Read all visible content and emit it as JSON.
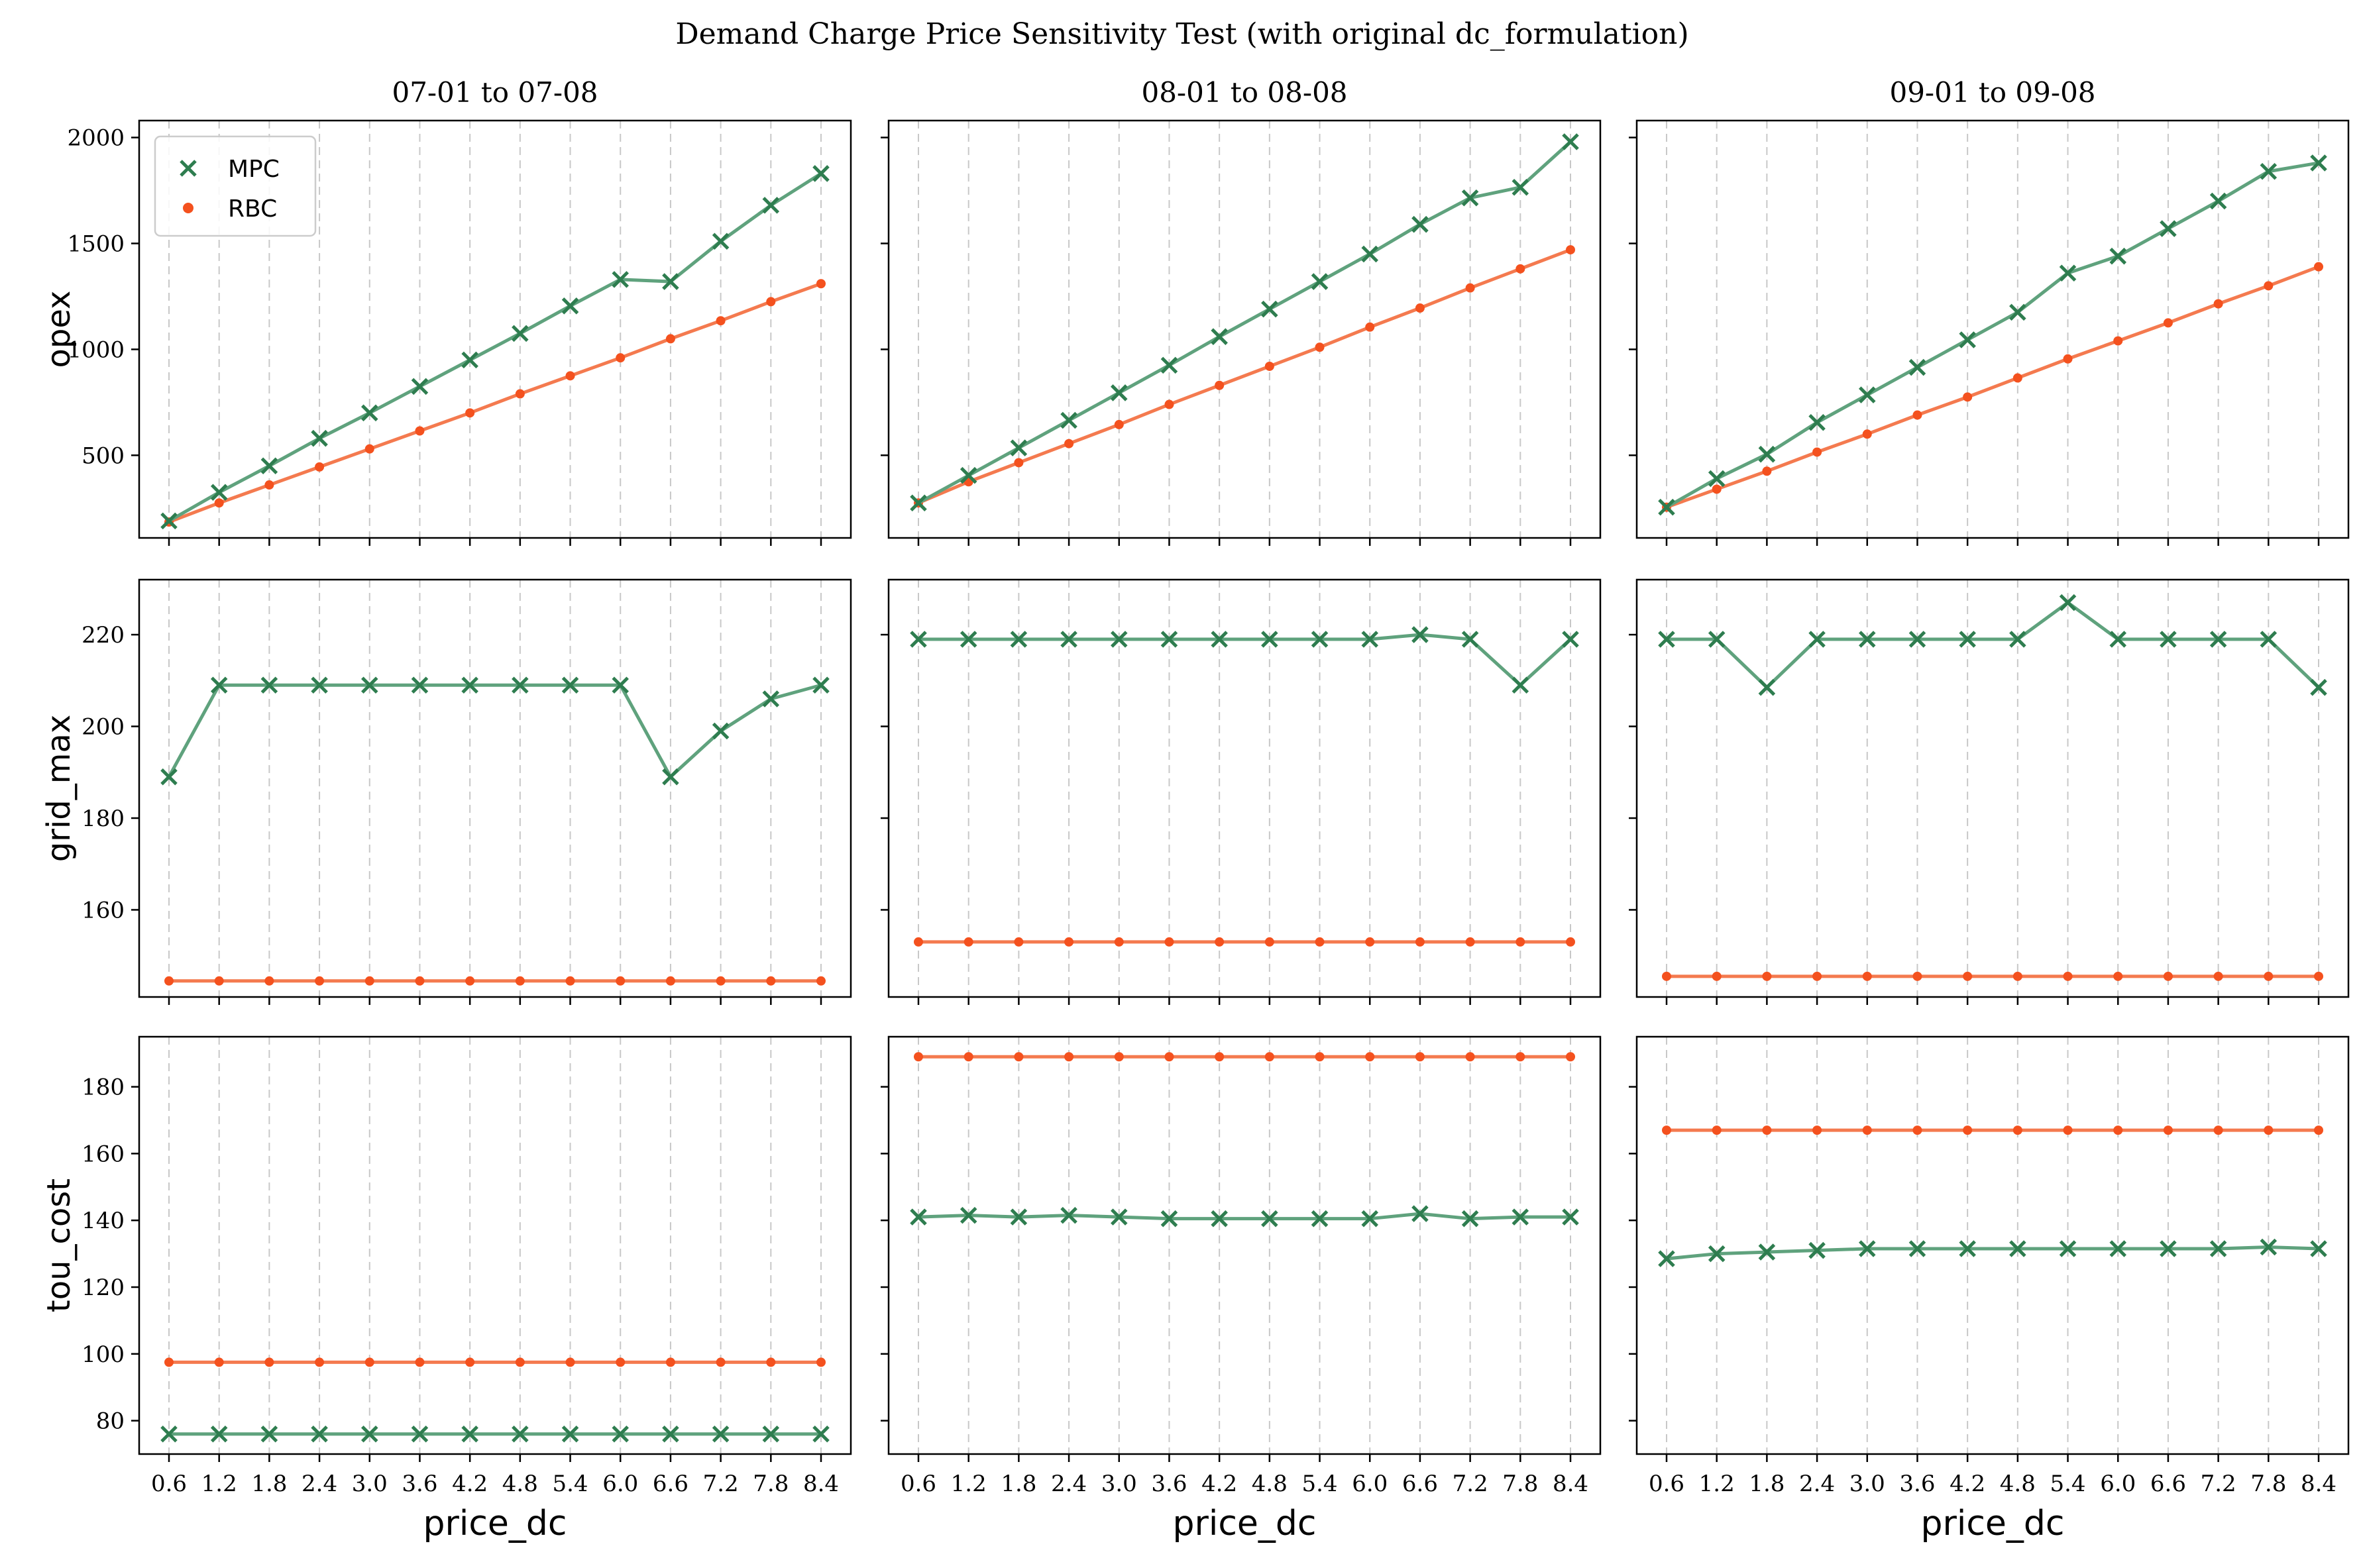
{
  "title": "Demand Charge Price Sensitivity Test (with original dc_formulation)",
  "colors": {
    "MPC": "#2e7d4f",
    "MPC_line": "#5fa27d",
    "RBC": "#f4511e",
    "RBC_line": "#f47a4f",
    "grid": "#c8c8c8"
  },
  "chart_data": {
    "type": "line",
    "grid": "vertical dashed",
    "legend_placement": "top-left",
    "legend": [
      "MPC",
      "RBC"
    ],
    "markers": {
      "MPC": "x",
      "RBC": "dot"
    },
    "x": [
      0.6,
      1.2,
      1.8,
      2.4,
      3.0,
      3.6,
      4.2,
      4.8,
      5.4,
      6.0,
      6.6,
      7.2,
      7.8,
      8.4
    ],
    "xticklabels": [
      "0.6",
      "1.2",
      "1.8",
      "2.4",
      "3.0",
      "3.6",
      "4.2",
      "4.8",
      "5.4",
      "6.0",
      "6.6",
      "7.2",
      "7.8",
      "8.4"
    ],
    "xlabel": "price_dc",
    "columns": [
      "07-01 to 07-08",
      "08-01 to 08-08",
      "09-01 to 09-08"
    ],
    "rows": [
      {
        "ylabel": "opex",
        "ylim": [
          110,
          2080
        ],
        "yticks": [
          500,
          1000,
          1500,
          2000
        ],
        "panels": [
          {
            "MPC": [
              190,
              325,
              450,
              580,
              700,
              825,
              950,
              1075,
              1205,
              1330,
              1320,
              1510,
              1680,
              1830
            ],
            "RBC": [
              185,
              275,
              360,
              445,
              530,
              615,
              700,
              790,
              875,
              960,
              1050,
              1135,
              1225,
              1310
            ]
          },
          {
            "MPC": [
              275,
              405,
              535,
              665,
              795,
              925,
              1060,
              1190,
              1320,
              1450,
              1590,
              1715,
              1765,
              1980
            ],
            "RBC": [
              275,
              375,
              465,
              555,
              645,
              740,
              830,
              920,
              1010,
              1105,
              1195,
              1290,
              1380,
              1470
            ]
          },
          {
            "MPC": [
              255,
              390,
              505,
              655,
              785,
              915,
              1045,
              1175,
              1360,
              1440,
              1570,
              1700,
              1840,
              1880
            ],
            "RBC": [
              255,
              340,
              425,
              515,
              600,
              690,
              775,
              865,
              955,
              1040,
              1125,
              1215,
              1300,
              1390
            ]
          }
        ]
      },
      {
        "ylabel": "grid_max",
        "ylim": [
          141,
          232
        ],
        "yticks": [
          160,
          180,
          200,
          220
        ],
        "panels": [
          {
            "MPC": [
              189,
              209,
              209,
              209,
              209,
              209,
              209,
              209,
              209,
              209,
              189,
              199,
              206,
              209
            ],
            "RBC": [
              144.5,
              144.5,
              144.5,
              144.5,
              144.5,
              144.5,
              144.5,
              144.5,
              144.5,
              144.5,
              144.5,
              144.5,
              144.5,
              144.5
            ]
          },
          {
            "MPC": [
              219,
              219,
              219,
              219,
              219,
              219,
              219,
              219,
              219,
              219,
              220,
              219,
              209,
              219
            ],
            "RBC": [
              153,
              153,
              153,
              153,
              153,
              153,
              153,
              153,
              153,
              153,
              153,
              153,
              153,
              153
            ]
          },
          {
            "MPC": [
              219,
              219,
              208.5,
              219,
              219,
              219,
              219,
              219,
              227,
              219,
              219,
              219,
              219,
              208.5
            ],
            "RBC": [
              145.5,
              145.5,
              145.5,
              145.5,
              145.5,
              145.5,
              145.5,
              145.5,
              145.5,
              145.5,
              145.5,
              145.5,
              145.5,
              145.5
            ]
          }
        ]
      },
      {
        "ylabel": "tou_cost",
        "ylim": [
          70,
          195
        ],
        "yticks": [
          80,
          100,
          120,
          140,
          160,
          180
        ],
        "panels": [
          {
            "MPC": [
              76,
              76,
              76,
              76,
              76,
              76,
              76,
              76,
              76,
              76,
              76,
              76,
              76,
              76
            ],
            "RBC": [
              97.5,
              97.5,
              97.5,
              97.5,
              97.5,
              97.5,
              97.5,
              97.5,
              97.5,
              97.5,
              97.5,
              97.5,
              97.5,
              97.5
            ]
          },
          {
            "MPC": [
              141,
              141.5,
              141,
              141.5,
              141,
              140.5,
              140.5,
              140.5,
              140.5,
              140.5,
              142,
              140.5,
              141,
              141
            ],
            "RBC": [
              189,
              189,
              189,
              189,
              189,
              189,
              189,
              189,
              189,
              189,
              189,
              189,
              189,
              189
            ]
          },
          {
            "MPC": [
              128.5,
              130,
              130.5,
              131,
              131.5,
              131.5,
              131.5,
              131.5,
              131.5,
              131.5,
              131.5,
              131.5,
              132,
              131.5
            ],
            "RBC": [
              167,
              167,
              167,
              167,
              167,
              167,
              167,
              167,
              167,
              167,
              167,
              167,
              167,
              167
            ]
          }
        ]
      }
    ]
  }
}
